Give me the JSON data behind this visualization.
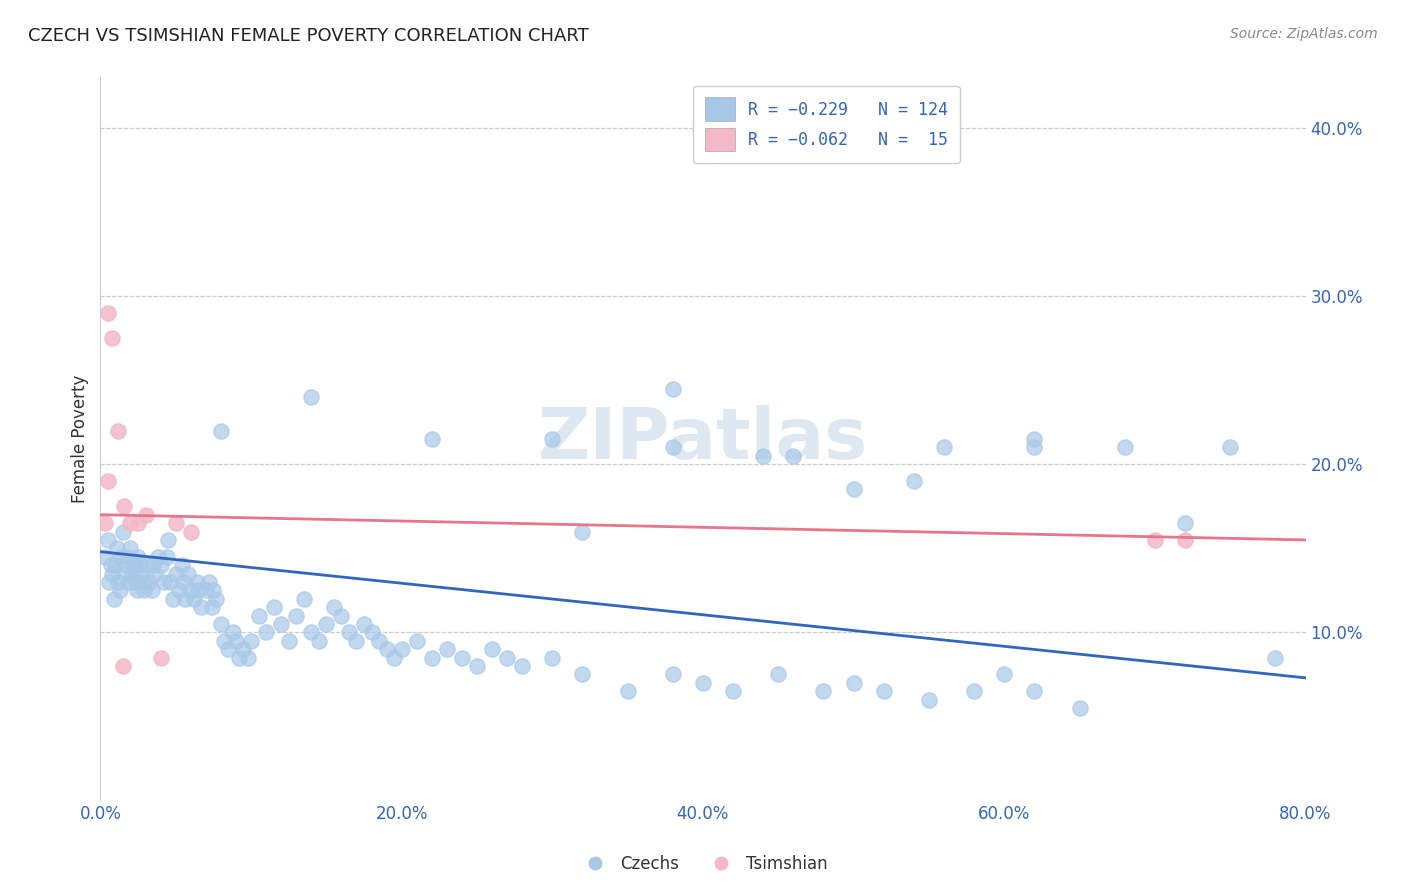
{
  "title": "CZECH VS TSIMSHIAN FEMALE POVERTY CORRELATION CHART",
  "source": "Source: ZipAtlas.com",
  "ylabel_label": "Female Poverty",
  "blue_color": "#a8c8e8",
  "pink_color": "#f4b8c8",
  "blue_line_color": "#3366bb",
  "pink_line_color": "#e8758a",
  "background_color": "#ffffff",
  "grid_color": "#cccccc",
  "xlim": [
    0.0,
    0.8
  ],
  "ylim": [
    0.0,
    0.43
  ],
  "watermark_color": "#dde8f0",
  "czech_x": [
    0.003,
    0.005,
    0.006,
    0.007,
    0.008,
    0.009,
    0.01,
    0.011,
    0.012,
    0.013,
    0.014,
    0.015,
    0.016,
    0.017,
    0.018,
    0.019,
    0.02,
    0.021,
    0.022,
    0.023,
    0.024,
    0.025,
    0.026,
    0.027,
    0.028,
    0.029,
    0.03,
    0.032,
    0.034,
    0.035,
    0.036,
    0.038,
    0.04,
    0.042,
    0.044,
    0.045,
    0.046,
    0.048,
    0.05,
    0.052,
    0.054,
    0.055,
    0.056,
    0.058,
    0.06,
    0.062,
    0.064,
    0.065,
    0.067,
    0.07,
    0.072,
    0.074,
    0.075,
    0.077,
    0.08,
    0.082,
    0.085,
    0.088,
    0.09,
    0.092,
    0.095,
    0.098,
    0.1,
    0.105,
    0.11,
    0.115,
    0.12,
    0.125,
    0.13,
    0.135,
    0.14,
    0.145,
    0.15,
    0.155,
    0.16,
    0.165,
    0.17,
    0.175,
    0.18,
    0.185,
    0.19,
    0.195,
    0.2,
    0.21,
    0.22,
    0.23,
    0.24,
    0.25,
    0.26,
    0.27,
    0.28,
    0.3,
    0.32,
    0.35,
    0.38,
    0.4,
    0.42,
    0.45,
    0.48,
    0.5,
    0.52,
    0.55,
    0.58,
    0.6,
    0.62,
    0.65,
    0.32,
    0.38,
    0.44,
    0.5,
    0.56,
    0.62,
    0.68,
    0.72,
    0.75,
    0.78,
    0.08,
    0.14,
    0.22,
    0.3,
    0.38,
    0.46,
    0.54,
    0.62
  ],
  "czech_y": [
    0.145,
    0.155,
    0.13,
    0.14,
    0.135,
    0.12,
    0.14,
    0.15,
    0.13,
    0.125,
    0.145,
    0.16,
    0.135,
    0.14,
    0.145,
    0.13,
    0.15,
    0.135,
    0.14,
    0.13,
    0.125,
    0.145,
    0.14,
    0.135,
    0.13,
    0.125,
    0.14,
    0.13,
    0.125,
    0.14,
    0.135,
    0.145,
    0.14,
    0.13,
    0.145,
    0.155,
    0.13,
    0.12,
    0.135,
    0.125,
    0.14,
    0.13,
    0.12,
    0.135,
    0.125,
    0.12,
    0.13,
    0.125,
    0.115,
    0.125,
    0.13,
    0.115,
    0.125,
    0.12,
    0.105,
    0.095,
    0.09,
    0.1,
    0.095,
    0.085,
    0.09,
    0.085,
    0.095,
    0.11,
    0.1,
    0.115,
    0.105,
    0.095,
    0.11,
    0.12,
    0.1,
    0.095,
    0.105,
    0.115,
    0.11,
    0.1,
    0.095,
    0.105,
    0.1,
    0.095,
    0.09,
    0.085,
    0.09,
    0.095,
    0.085,
    0.09,
    0.085,
    0.08,
    0.09,
    0.085,
    0.08,
    0.085,
    0.075,
    0.065,
    0.075,
    0.07,
    0.065,
    0.075,
    0.065,
    0.07,
    0.065,
    0.06,
    0.065,
    0.075,
    0.065,
    0.055,
    0.16,
    0.245,
    0.205,
    0.185,
    0.21,
    0.215,
    0.21,
    0.165,
    0.21,
    0.085,
    0.22,
    0.24,
    0.215,
    0.215,
    0.21,
    0.205,
    0.19,
    0.21
  ],
  "tsimshian_x": [
    0.003,
    0.005,
    0.008,
    0.012,
    0.016,
    0.02,
    0.025,
    0.03,
    0.04,
    0.05,
    0.06,
    0.7,
    0.72,
    0.005,
    0.015
  ],
  "tsimshian_y": [
    0.165,
    0.29,
    0.275,
    0.22,
    0.175,
    0.165,
    0.165,
    0.17,
    0.085,
    0.165,
    0.16,
    0.155,
    0.155,
    0.19,
    0.08
  ]
}
